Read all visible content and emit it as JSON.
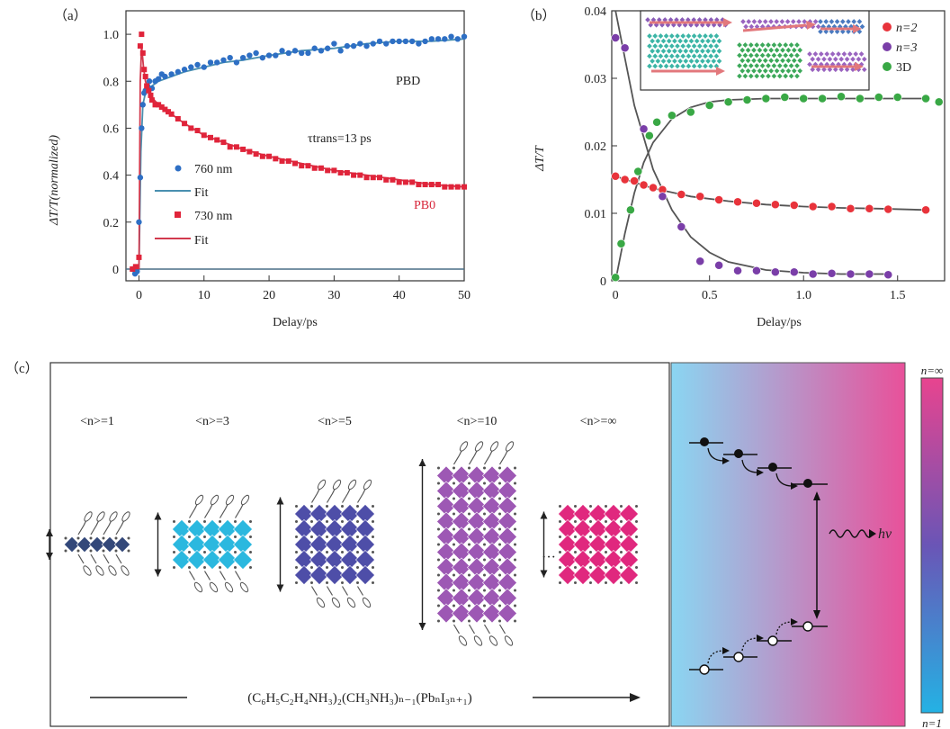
{
  "panels": {
    "a": {
      "label": "（a）"
    },
    "b": {
      "label": "（b）"
    },
    "c": {
      "label": "（c）"
    }
  },
  "chart_data": [
    {
      "id": "a",
      "type": "scatter",
      "xlabel": "Delay/ps",
      "ylabel": "ΔT/T(normalized)",
      "xlim": [
        -2,
        50
      ],
      "ylim": [
        -0.05,
        1.1
      ],
      "xticks": [
        "0",
        "10",
        "20",
        "30",
        "40",
        "50"
      ],
      "yticks": [
        "0",
        "0.2",
        "0.4",
        "0.6",
        "0.8",
        "1.0"
      ],
      "legend": [
        "760 nm",
        "Fit",
        "730 nm",
        "Fit"
      ],
      "legend_position": "center-left",
      "annotations": {
        "pbd": "PBD",
        "pb0": "PB0",
        "tau": "τtrans=13 ps"
      },
      "series": [
        {
          "name": "760 nm",
          "color": "#2e6fc4",
          "marker": "circle",
          "x": [
            -1,
            -0.6,
            -0.3,
            0,
            0.2,
            0.4,
            0.6,
            0.8,
            1.0,
            1.3,
            1.6,
            2,
            2.5,
            3,
            3.5,
            4,
            5,
            6,
            7,
            8,
            9,
            10,
            11,
            12,
            13,
            14,
            15,
            16,
            17,
            18,
            19,
            20,
            21,
            22,
            23,
            24,
            25,
            26,
            27,
            28,
            29,
            30,
            31,
            32,
            33,
            34,
            35,
            36,
            37,
            38,
            39,
            40,
            41,
            42,
            43,
            44,
            45,
            46,
            47,
            48,
            49,
            50
          ],
          "y": [
            0.0,
            -0.02,
            -0.01,
            0.2,
            0.39,
            0.6,
            0.7,
            0.75,
            0.76,
            0.78,
            0.8,
            0.77,
            0.8,
            0.81,
            0.83,
            0.82,
            0.83,
            0.84,
            0.85,
            0.86,
            0.87,
            0.86,
            0.88,
            0.88,
            0.89,
            0.9,
            0.88,
            0.9,
            0.91,
            0.92,
            0.9,
            0.91,
            0.91,
            0.93,
            0.92,
            0.93,
            0.92,
            0.92,
            0.94,
            0.93,
            0.94,
            0.96,
            0.93,
            0.95,
            0.95,
            0.96,
            0.95,
            0.96,
            0.97,
            0.96,
            0.97,
            0.97,
            0.97,
            0.97,
            0.96,
            0.97,
            0.98,
            0.98,
            0.98,
            0.99,
            0.98,
            0.99
          ]
        },
        {
          "name": "Fit",
          "color": "#4a90b0",
          "type": "line",
          "x": [
            0,
            0.3,
            0.6,
            1,
            1.5,
            2,
            3,
            4,
            5,
            7,
            10,
            13,
            16,
            20,
            25,
            30,
            35,
            40,
            45,
            50
          ],
          "y": [
            0.0,
            0.5,
            0.7,
            0.75,
            0.77,
            0.78,
            0.8,
            0.81,
            0.82,
            0.84,
            0.86,
            0.88,
            0.89,
            0.91,
            0.93,
            0.94,
            0.96,
            0.97,
            0.97,
            0.98
          ]
        },
        {
          "name": "730 nm",
          "color": "#e0243a",
          "marker": "square",
          "x": [
            -1,
            -0.5,
            0,
            0.2,
            0.4,
            0.6,
            0.8,
            1.0,
            1.2,
            1.5,
            1.8,
            2,
            2.5,
            3,
            3.5,
            4,
            4.5,
            5,
            6,
            7,
            8,
            9,
            10,
            11,
            12,
            13,
            14,
            15,
            16,
            17,
            18,
            19,
            20,
            21,
            22,
            23,
            24,
            25,
            26,
            27,
            28,
            29,
            30,
            31,
            32,
            33,
            34,
            35,
            36,
            37,
            38,
            39,
            40,
            41,
            42,
            43,
            44,
            45,
            46,
            47,
            48,
            49,
            50
          ],
          "y": [
            0.0,
            0.01,
            0.05,
            0.95,
            1.0,
            0.92,
            0.85,
            0.82,
            0.78,
            0.76,
            0.74,
            0.72,
            0.7,
            0.7,
            0.69,
            0.68,
            0.67,
            0.66,
            0.64,
            0.62,
            0.6,
            0.59,
            0.57,
            0.56,
            0.55,
            0.54,
            0.52,
            0.52,
            0.51,
            0.5,
            0.49,
            0.48,
            0.48,
            0.47,
            0.46,
            0.46,
            0.45,
            0.44,
            0.44,
            0.43,
            0.43,
            0.42,
            0.42,
            0.41,
            0.41,
            0.4,
            0.4,
            0.39,
            0.39,
            0.39,
            0.38,
            0.38,
            0.37,
            0.37,
            0.37,
            0.36,
            0.36,
            0.36,
            0.36,
            0.35,
            0.35,
            0.35,
            0.35
          ]
        },
        {
          "name": "Fit",
          "color": "#d23a4e",
          "type": "line",
          "x": [
            0,
            0.2,
            0.4,
            0.7,
            1,
            1.5,
            2,
            3,
            4,
            5,
            7,
            10,
            13,
            16,
            20,
            25,
            30,
            35,
            40,
            45,
            50
          ],
          "y": [
            0.0,
            0.8,
            0.95,
            0.86,
            0.8,
            0.76,
            0.73,
            0.7,
            0.68,
            0.66,
            0.62,
            0.57,
            0.54,
            0.51,
            0.48,
            0.45,
            0.42,
            0.4,
            0.38,
            0.36,
            0.35
          ]
        }
      ]
    },
    {
      "id": "b",
      "type": "scatter",
      "xlabel": "Delay/ps",
      "ylabel": "ΔT/T",
      "xlim": [
        0,
        1.75
      ],
      "ylim": [
        0,
        0.04
      ],
      "xticks": [
        "0",
        "0.5",
        "1.0",
        "1.5"
      ],
      "yticks": [
        "0",
        "0.01",
        "0.02",
        "0.03",
        "0.04"
      ],
      "legend": [
        "n=2",
        "n=3",
        "3D"
      ],
      "legend_position": "top-right",
      "series": [
        {
          "name": "n=2",
          "color": "#e8333b",
          "marker": "circle",
          "x": [
            0,
            0.05,
            0.1,
            0.15,
            0.2,
            0.25,
            0.35,
            0.45,
            0.55,
            0.65,
            0.75,
            0.85,
            0.95,
            1.05,
            1.15,
            1.25,
            1.35,
            1.45,
            1.65
          ],
          "y": [
            0.0155,
            0.015,
            0.0148,
            0.0142,
            0.0138,
            0.0135,
            0.0128,
            0.0125,
            0.012,
            0.0117,
            0.0115,
            0.0113,
            0.0112,
            0.011,
            0.011,
            0.0107,
            0.0107,
            0.0106,
            0.0105
          ]
        },
        {
          "name": "n=3",
          "color": "#7a3ea8",
          "marker": "circle",
          "x": [
            0,
            0.05,
            0.15,
            0.25,
            0.35,
            0.45,
            0.55,
            0.65,
            0.75,
            0.85,
            0.95,
            1.05,
            1.15,
            1.25,
            1.35,
            1.45
          ],
          "y": [
            0.036,
            0.0345,
            0.0225,
            0.0125,
            0.008,
            0.0029,
            0.0023,
            0.0015,
            0.0015,
            0.0013,
            0.0013,
            0.001,
            0.0011,
            0.001,
            0.001,
            0.0009
          ]
        },
        {
          "name": "3D",
          "color": "#39a845",
          "marker": "circle",
          "x": [
            0,
            0.03,
            0.08,
            0.12,
            0.18,
            0.22,
            0.3,
            0.4,
            0.5,
            0.6,
            0.7,
            0.8,
            0.9,
            1.0,
            1.1,
            1.2,
            1.3,
            1.4,
            1.5,
            1.65,
            1.72
          ],
          "y": [
            0.0005,
            0.0055,
            0.0105,
            0.0162,
            0.0215,
            0.0235,
            0.0245,
            0.025,
            0.026,
            0.0265,
            0.0268,
            0.027,
            0.0272,
            0.027,
            0.027,
            0.0273,
            0.027,
            0.0272,
            0.0272,
            0.027,
            0.0265
          ]
        }
      ],
      "fits": [
        {
          "name": "n=2 fit",
          "x": [
            0,
            0.2,
            0.4,
            0.6,
            0.8,
            1.0,
            1.2,
            1.4,
            1.65
          ],
          "y": [
            0.0155,
            0.0137,
            0.0125,
            0.0118,
            0.0113,
            0.011,
            0.0108,
            0.0107,
            0.0105
          ]
        },
        {
          "name": "n=3 fit",
          "x": [
            0,
            0.05,
            0.1,
            0.2,
            0.3,
            0.4,
            0.5,
            0.6,
            0.8,
            1.0,
            1.2,
            1.45
          ],
          "y": [
            0.04,
            0.033,
            0.026,
            0.0165,
            0.0105,
            0.0065,
            0.0042,
            0.0028,
            0.0016,
            0.0012,
            0.001,
            0.001
          ]
        },
        {
          "name": "3D fit",
          "x": [
            0,
            0.05,
            0.1,
            0.15,
            0.2,
            0.3,
            0.4,
            0.5,
            0.6,
            0.8,
            1.0,
            1.3,
            1.65
          ],
          "y": [
            0.0,
            0.007,
            0.013,
            0.0175,
            0.0205,
            0.024,
            0.0257,
            0.0265,
            0.0268,
            0.027,
            0.027,
            0.027,
            0.027
          ]
        }
      ]
    }
  ],
  "panel_c": {
    "structures": [
      {
        "label": "<n>=1",
        "layers": 1,
        "color": "#33487a"
      },
      {
        "label": "<n>=3",
        "layers": 3,
        "color": "#2bb8df"
      },
      {
        "label": "<n>=5",
        "layers": 5,
        "color": "#4e4ea8"
      },
      {
        "label": "<n>=10",
        "layers": 10,
        "color": "#9d58b4"
      },
      {
        "label": "<n>=∞",
        "layers": 5,
        "color": "#e0287e"
      }
    ],
    "ellipsis": "···",
    "formula": "(C₆H₅C₂H₄NH₃)₂(CH₃NH₃)ₙ₋₁(PbₙI₃ₙ₊₁)",
    "hv_label": "hν",
    "colorbar_top": "n=∞",
    "colorbar_bottom": "n=1"
  }
}
